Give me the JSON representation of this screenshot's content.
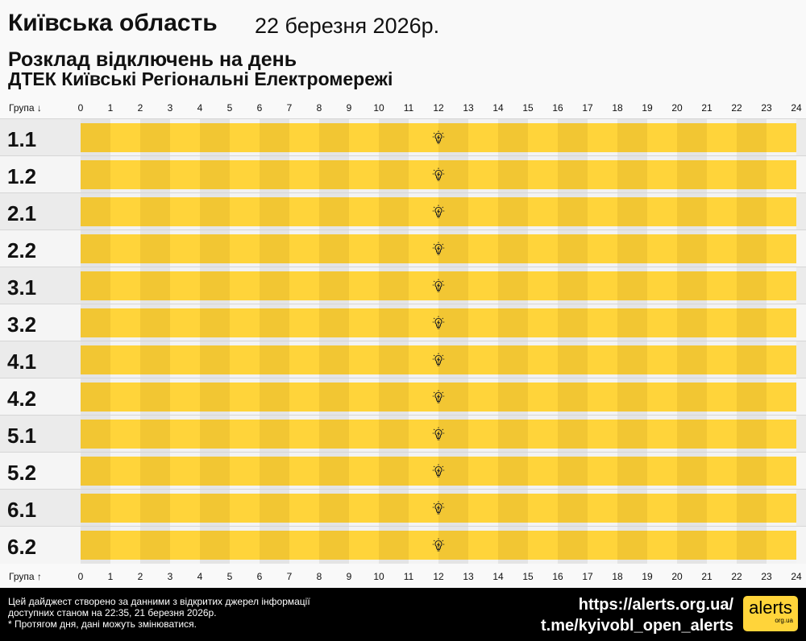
{
  "header": {
    "region": "Київська область",
    "date": "22 березня 2026р.",
    "subtitle": "Розклад відключень на день",
    "provider": "ДТЕК Київські Регіональні Електромережі"
  },
  "axis": {
    "top_label": "Група ↓",
    "bottom_label": "Група ↑",
    "hours": [
      "0",
      "1",
      "2",
      "3",
      "4",
      "5",
      "6",
      "7",
      "8",
      "9",
      "10",
      "11",
      "12",
      "13",
      "14",
      "15",
      "16",
      "17",
      "18",
      "19",
      "20",
      "21",
      "22",
      "23",
      "24"
    ]
  },
  "colors": {
    "power_on_even": "#f2c633",
    "power_on_odd": "#ffd43a",
    "label_bg_a": "#ebebeb",
    "label_bg_b": "#f5f5f5",
    "footer_bg": "#000000"
  },
  "groups": [
    {
      "name": "1.1",
      "status": "power on all day",
      "icon": "lightbulb-icon"
    },
    {
      "name": "1.2",
      "status": "power on all day",
      "icon": "lightbulb-icon"
    },
    {
      "name": "2.1",
      "status": "power on all day",
      "icon": "lightbulb-icon"
    },
    {
      "name": "2.2",
      "status": "power on all day",
      "icon": "lightbulb-icon"
    },
    {
      "name": "3.1",
      "status": "power on all day",
      "icon": "lightbulb-icon"
    },
    {
      "name": "3.2",
      "status": "power on all day",
      "icon": "lightbulb-icon"
    },
    {
      "name": "4.1",
      "status": "power on all day",
      "icon": "lightbulb-icon"
    },
    {
      "name": "4.2",
      "status": "power on all day",
      "icon": "lightbulb-icon"
    },
    {
      "name": "5.1",
      "status": "power on all day",
      "icon": "lightbulb-icon"
    },
    {
      "name": "5.2",
      "status": "power on all day",
      "icon": "lightbulb-icon"
    },
    {
      "name": "6.1",
      "status": "power on all day",
      "icon": "lightbulb-icon"
    },
    {
      "name": "6.2",
      "status": "power on all day",
      "icon": "lightbulb-icon"
    }
  ],
  "footer": {
    "note1": "Цей дайджест створено за данними з відкритих джерел інформації",
    "note2": "доступних станом на 22:35, 21 березня 2026р.",
    "note3": "* Протягом дня, дані можуть змінюватися.",
    "link1": "https://alerts.org.ua/",
    "link2": "t.me/kyivobl_open_alerts",
    "logo_text": "alerts",
    "logo_sub": "org.ua"
  }
}
